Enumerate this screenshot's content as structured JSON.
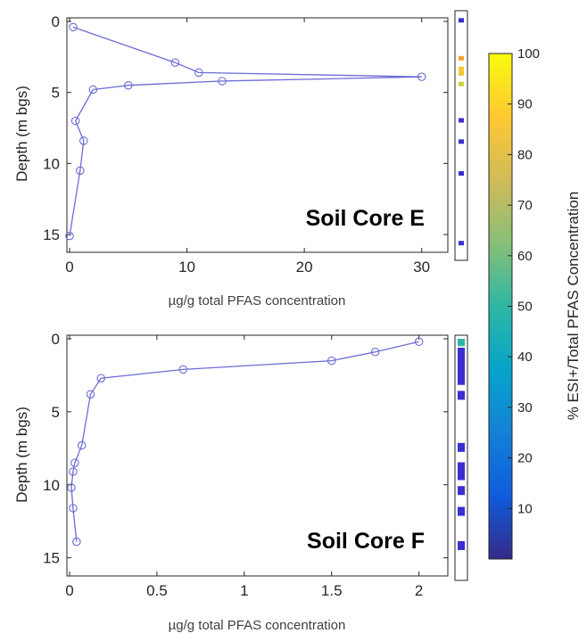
{
  "chart_data": [
    {
      "type": "line",
      "title": "Soil Core E",
      "xlabel": "µg/g total PFAS concentration",
      "ylabel": "Depth (m bgs)",
      "xlim": [
        0,
        32
      ],
      "ylim": [
        0,
        16
      ],
      "y_reversed": true,
      "x_ticks": [
        0,
        10,
        20,
        30
      ],
      "y_ticks": [
        0,
        5,
        10,
        15
      ],
      "x_tick_labels": [
        "0",
        "10",
        "20",
        "30"
      ],
      "y_tick_labels": [
        "0",
        "5",
        "10",
        "15"
      ],
      "line_color": "#6b6bd6",
      "marker": "open-circle",
      "series": [
        {
          "x": [
            0.3,
            9.0,
            11.0,
            30.0,
            13.0,
            5.0,
            2.0,
            0.5,
            1.2,
            0.9,
            0.0
          ],
          "y": [
            0.4,
            2.9,
            3.6,
            3.9,
            4.2,
            4.5,
            4.8,
            7.0,
            8.4,
            10.5,
            15.1
          ]
        }
      ],
      "strip": {
        "colors": [
          "#3b2fd0",
          "#f5a22e",
          "#f7c52f",
          "#e8cc2e",
          "#c8d43a",
          "#3b2fd0",
          "#3b2fd0",
          "#3b2fd0",
          "#3b2fd0"
        ],
        "depths": [
          0.4,
          2.9,
          3.6,
          3.9,
          4.6,
          7.0,
          8.4,
          10.5,
          15.1
        ],
        "percent": [
          3,
          82,
          90,
          93,
          90,
          3,
          3,
          3,
          3
        ]
      }
    },
    {
      "type": "line",
      "title": "Soil Core F",
      "xlabel": "µg/g total PFAS concentration",
      "ylabel": "Depth (m bgs)",
      "xlim": [
        0,
        2.15
      ],
      "ylim": [
        0,
        16
      ],
      "y_reversed": true,
      "x_ticks": [
        0,
        0.5,
        1,
        1.5,
        2
      ],
      "y_ticks": [
        0,
        5,
        10,
        15
      ],
      "x_tick_labels": [
        "0",
        "0.5",
        "1",
        "1.5",
        "2"
      ],
      "y_tick_labels": [
        "0",
        "5",
        "10",
        "15"
      ],
      "line_color": "#6b6bd6",
      "marker": "open-circle",
      "series": [
        {
          "x": [
            2.0,
            1.75,
            1.5,
            0.65,
            0.18,
            0.12,
            0.07,
            0.03,
            0.02,
            0.01,
            0.02,
            0.04
          ],
          "y": [
            0.2,
            0.9,
            1.5,
            2.1,
            2.7,
            3.8,
            7.3,
            8.5,
            9.1,
            10.2,
            11.6,
            13.9
          ]
        }
      ],
      "strip": {
        "colors": [
          "#2fb5a5",
          "#3b2fd0",
          "#3b2fd0",
          "#3b2fd0",
          "#3b2fd0",
          "#3b2fd0",
          "#3b2fd0",
          "#3b2fd0"
        ],
        "depths": [
          0.2,
          1.9,
          3.8,
          7.3,
          8.9,
          10.2,
          11.6,
          13.9
        ],
        "percent": [
          45,
          3,
          3,
          3,
          3,
          3,
          3,
          3
        ],
        "spans": [
          [
            0.0,
            0.5
          ],
          [
            0.6,
            3.1
          ],
          [
            3.5,
            4.1
          ],
          [
            7.0,
            7.6
          ],
          [
            8.3,
            9.5
          ],
          [
            9.9,
            10.5
          ],
          [
            11.3,
            11.9
          ],
          [
            13.6,
            14.2
          ]
        ]
      }
    }
  ],
  "colorbar": {
    "label": "% ESI+/Total PFAS Concentration",
    "ticks": [
      10,
      20,
      30,
      40,
      50,
      60,
      70,
      80,
      90,
      100
    ],
    "tick_labels": [
      "10",
      "20",
      "30",
      "40",
      "50",
      "60",
      "70",
      "80",
      "90",
      "100"
    ],
    "range": [
      0,
      100
    ],
    "colormap": "parula",
    "stops": [
      "#352a87",
      "#0f5cdd",
      "#1481d6",
      "#06a4ca",
      "#2eb7a4",
      "#87bf77",
      "#d1bb59",
      "#fec832",
      "#f9fb0e"
    ]
  }
}
